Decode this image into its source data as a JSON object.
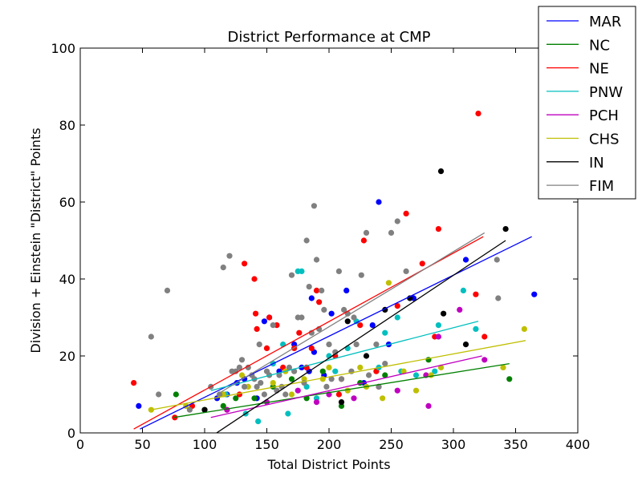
{
  "chart_data": {
    "type": "scatter",
    "title": "District Performance at CMP",
    "xlabel": "Total District Points",
    "ylabel": "Division + Einstein \"District\" Points",
    "xlim": [
      0,
      400
    ],
    "ylim": [
      0,
      100
    ],
    "xticks": [
      "0",
      "50",
      "100",
      "150",
      "200",
      "250",
      "300",
      "350",
      "400"
    ],
    "yticks": [
      "0",
      "20",
      "40",
      "60",
      "80",
      "100"
    ],
    "grid": false,
    "legend_placement": "top-right",
    "series": [
      {
        "name": "MAR",
        "color": "#0000ff",
        "trend": [
          [
            48,
            1
          ],
          [
            363,
            51
          ]
        ],
        "points": [
          [
            47,
            7
          ],
          [
            110,
            9
          ],
          [
            118,
            10
          ],
          [
            126,
            13
          ],
          [
            132,
            14
          ],
          [
            142,
            9
          ],
          [
            148,
            29
          ],
          [
            152,
            30
          ],
          [
            160,
            16
          ],
          [
            172,
            23
          ],
          [
            178,
            17
          ],
          [
            184,
            16
          ],
          [
            186,
            35
          ],
          [
            188,
            21
          ],
          [
            196,
            15
          ],
          [
            202,
            31
          ],
          [
            214,
            37
          ],
          [
            228,
            13
          ],
          [
            235,
            28
          ],
          [
            240,
            60
          ],
          [
            248,
            23
          ],
          [
            268,
            35
          ],
          [
            310,
            45
          ],
          [
            365,
            36
          ]
        ]
      },
      {
        "name": "NC",
        "color": "#008000",
        "trend": [
          [
            75,
            4
          ],
          [
            345,
            18
          ]
        ],
        "points": [
          [
            77,
            10
          ],
          [
            100,
            6
          ],
          [
            115,
            7
          ],
          [
            125,
            9
          ],
          [
            140,
            9
          ],
          [
            155,
            12
          ],
          [
            170,
            14
          ],
          [
            182,
            9
          ],
          [
            195,
            16
          ],
          [
            210,
            7
          ],
          [
            225,
            13
          ],
          [
            245,
            15
          ],
          [
            280,
            19
          ],
          [
            345,
            14
          ]
        ]
      },
      {
        "name": "NE",
        "color": "#ff0000",
        "trend": [
          [
            43,
            1
          ],
          [
            324,
            51
          ]
        ],
        "points": [
          [
            43,
            13
          ],
          [
            76,
            4
          ],
          [
            90,
            7
          ],
          [
            118,
            6
          ],
          [
            128,
            10
          ],
          [
            132,
            44
          ],
          [
            140,
            40
          ],
          [
            141,
            31
          ],
          [
            142,
            27
          ],
          [
            150,
            22
          ],
          [
            152,
            30
          ],
          [
            158,
            28
          ],
          [
            163,
            17
          ],
          [
            172,
            22
          ],
          [
            176,
            26
          ],
          [
            182,
            17
          ],
          [
            186,
            22
          ],
          [
            190,
            37
          ],
          [
            192,
            34
          ],
          [
            205,
            20
          ],
          [
            208,
            10
          ],
          [
            210,
            14
          ],
          [
            225,
            28
          ],
          [
            228,
            50
          ],
          [
            238,
            16
          ],
          [
            255,
            33
          ],
          [
            262,
            57
          ],
          [
            275,
            44
          ],
          [
            288,
            53
          ],
          [
            320,
            83
          ],
          [
            318,
            36
          ],
          [
            325,
            25
          ],
          [
            285,
            25
          ]
        ]
      },
      {
        "name": "PNW",
        "color": "#00bfbf",
        "trend": [
          [
            105,
            11
          ],
          [
            320,
            29
          ]
        ],
        "points": [
          [
            117,
            10
          ],
          [
            133,
            5
          ],
          [
            143,
            3
          ],
          [
            155,
            18
          ],
          [
            163,
            23
          ],
          [
            167,
            5
          ],
          [
            175,
            42
          ],
          [
            178,
            42
          ],
          [
            182,
            12
          ],
          [
            190,
            9
          ],
          [
            200,
            20
          ],
          [
            205,
            16
          ],
          [
            215,
            22
          ],
          [
            222,
            29
          ],
          [
            240,
            17
          ],
          [
            245,
            26
          ],
          [
            255,
            30
          ],
          [
            258,
            16
          ],
          [
            270,
            15
          ],
          [
            285,
            16
          ],
          [
            288,
            28
          ],
          [
            308,
            37
          ],
          [
            318,
            27
          ]
        ]
      },
      {
        "name": "PCH",
        "color": "#bf00bf",
        "trend": [
          [
            105,
            4
          ],
          [
            323,
            20
          ]
        ],
        "points": [
          [
            118,
            6
          ],
          [
            150,
            8
          ],
          [
            175,
            11
          ],
          [
            190,
            8
          ],
          [
            200,
            10
          ],
          [
            220,
            9
          ],
          [
            240,
            12
          ],
          [
            255,
            11
          ],
          [
            278,
            15
          ],
          [
            280,
            7
          ],
          [
            288,
            25
          ],
          [
            305,
            32
          ],
          [
            325,
            19
          ]
        ]
      },
      {
        "name": "CHS",
        "color": "#bfbf00",
        "trend": [
          [
            57,
            6
          ],
          [
            358,
            24
          ]
        ],
        "points": [
          [
            57,
            6
          ],
          [
            85,
            7
          ],
          [
            115,
            10
          ],
          [
            130,
            15
          ],
          [
            135,
            12
          ],
          [
            155,
            13
          ],
          [
            165,
            16
          ],
          [
            170,
            10
          ],
          [
            180,
            14
          ],
          [
            195,
            14
          ],
          [
            200,
            17
          ],
          [
            215,
            11
          ],
          [
            225,
            17
          ],
          [
            230,
            12
          ],
          [
            243,
            9
          ],
          [
            248,
            39
          ],
          [
            260,
            16
          ],
          [
            270,
            11
          ],
          [
            282,
            15
          ],
          [
            290,
            17
          ],
          [
            340,
            17
          ],
          [
            357,
            27
          ]
        ]
      },
      {
        "name": "IN",
        "color": "#000000",
        "trend": [
          [
            105,
            -1
          ],
          [
            342,
            50
          ]
        ],
        "points": [
          [
            100,
            6
          ],
          [
            210,
            8
          ],
          [
            215,
            29
          ],
          [
            230,
            20
          ],
          [
            245,
            32
          ],
          [
            265,
            35
          ],
          [
            290,
            68
          ],
          [
            292,
            31
          ],
          [
            310,
            23
          ],
          [
            342,
            53
          ]
        ]
      },
      {
        "name": "FIM",
        "color": "#808080",
        "trend": [
          [
            110,
            10
          ],
          [
            325,
            52
          ]
        ],
        "points": [
          [
            57,
            25
          ],
          [
            63,
            10
          ],
          [
            70,
            37
          ],
          [
            88,
            6
          ],
          [
            105,
            12
          ],
          [
            112,
            10
          ],
          [
            115,
            43
          ],
          [
            120,
            46
          ],
          [
            122,
            16
          ],
          [
            125,
            16
          ],
          [
            128,
            17
          ],
          [
            130,
            19
          ],
          [
            132,
            12
          ],
          [
            135,
            17
          ],
          [
            138,
            15
          ],
          [
            140,
            14
          ],
          [
            142,
            12
          ],
          [
            144,
            23
          ],
          [
            145,
            13
          ],
          [
            148,
            10
          ],
          [
            150,
            16
          ],
          [
            152,
            15
          ],
          [
            155,
            28
          ],
          [
            158,
            11
          ],
          [
            160,
            15
          ],
          [
            162,
            12
          ],
          [
            165,
            10
          ],
          [
            168,
            17
          ],
          [
            170,
            41
          ],
          [
            172,
            16
          ],
          [
            175,
            30
          ],
          [
            178,
            30
          ],
          [
            180,
            13
          ],
          [
            182,
            50
          ],
          [
            184,
            38
          ],
          [
            186,
            26
          ],
          [
            188,
            59
          ],
          [
            190,
            45
          ],
          [
            192,
            27
          ],
          [
            194,
            37
          ],
          [
            196,
            32
          ],
          [
            198,
            12
          ],
          [
            200,
            23
          ],
          [
            202,
            14
          ],
          [
            205,
            21
          ],
          [
            208,
            42
          ],
          [
            210,
            14
          ],
          [
            212,
            32
          ],
          [
            215,
            31
          ],
          [
            218,
            16
          ],
          [
            220,
            30
          ],
          [
            222,
            23
          ],
          [
            226,
            41
          ],
          [
            230,
            52
          ],
          [
            232,
            15
          ],
          [
            238,
            23
          ],
          [
            240,
            12
          ],
          [
            245,
            18
          ],
          [
            250,
            52
          ],
          [
            255,
            55
          ],
          [
            262,
            42
          ],
          [
            335,
            45
          ],
          [
            336,
            35
          ]
        ]
      }
    ]
  }
}
